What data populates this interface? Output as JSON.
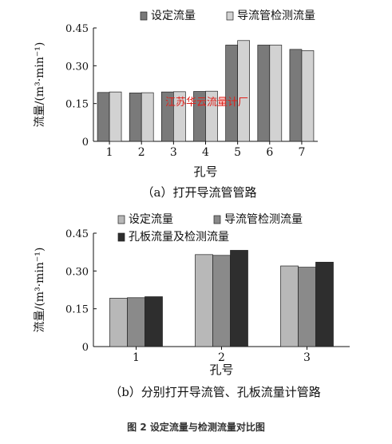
{
  "figure_caption": "图 2 设定流量与检测流量对比图",
  "colors": {
    "set": "#7a7a7a",
    "guide": "#d2d2d2",
    "orifice": "#2e2e2e",
    "watermark": "#e0201a"
  },
  "chart_data": [
    {
      "type": "bar",
      "title": "（a）打开导流管管路",
      "xlabel": "孔号",
      "ylabel": "流量/(m³·min⁻¹)",
      "ylim": [
        0,
        0.45
      ],
      "yticks": [
        "0",
        "0.15",
        "0.30",
        "0.45"
      ],
      "categories": [
        "1",
        "2",
        "3",
        "4",
        "5",
        "6",
        "7"
      ],
      "series": [
        {
          "name": "设定流量",
          "color": "#7a7a7a",
          "values": [
            0.194,
            0.192,
            0.196,
            0.198,
            0.382,
            0.382,
            0.365
          ]
        },
        {
          "name": "导流管检测流量",
          "color": "#d2d2d2",
          "values": [
            0.196,
            0.193,
            0.197,
            0.199,
            0.4,
            0.382,
            0.36
          ]
        }
      ],
      "legend": "top",
      "watermark": "江苏华云流量计厂"
    },
    {
      "type": "bar",
      "title": "（b）分别打开导流管、孔板流量计管路",
      "xlabel": "孔号",
      "ylabel": "流量/(m³·min⁻¹)",
      "ylim": [
        0,
        0.45
      ],
      "yticks": [
        "0",
        "0.15",
        "0.30",
        "0.45"
      ],
      "categories": [
        "1",
        "2",
        "3"
      ],
      "series": [
        {
          "name": "设定流量",
          "color": "#b8b8b8",
          "values": [
            0.192,
            0.365,
            0.32
          ]
        },
        {
          "name": "导流管检测流量",
          "color": "#8a8a8a",
          "values": [
            0.194,
            0.362,
            0.315
          ]
        },
        {
          "name": "孔板流量及检测流量",
          "color": "#2e2e2e",
          "values": [
            0.198,
            0.382,
            0.335
          ]
        }
      ],
      "legend": "top"
    }
  ]
}
